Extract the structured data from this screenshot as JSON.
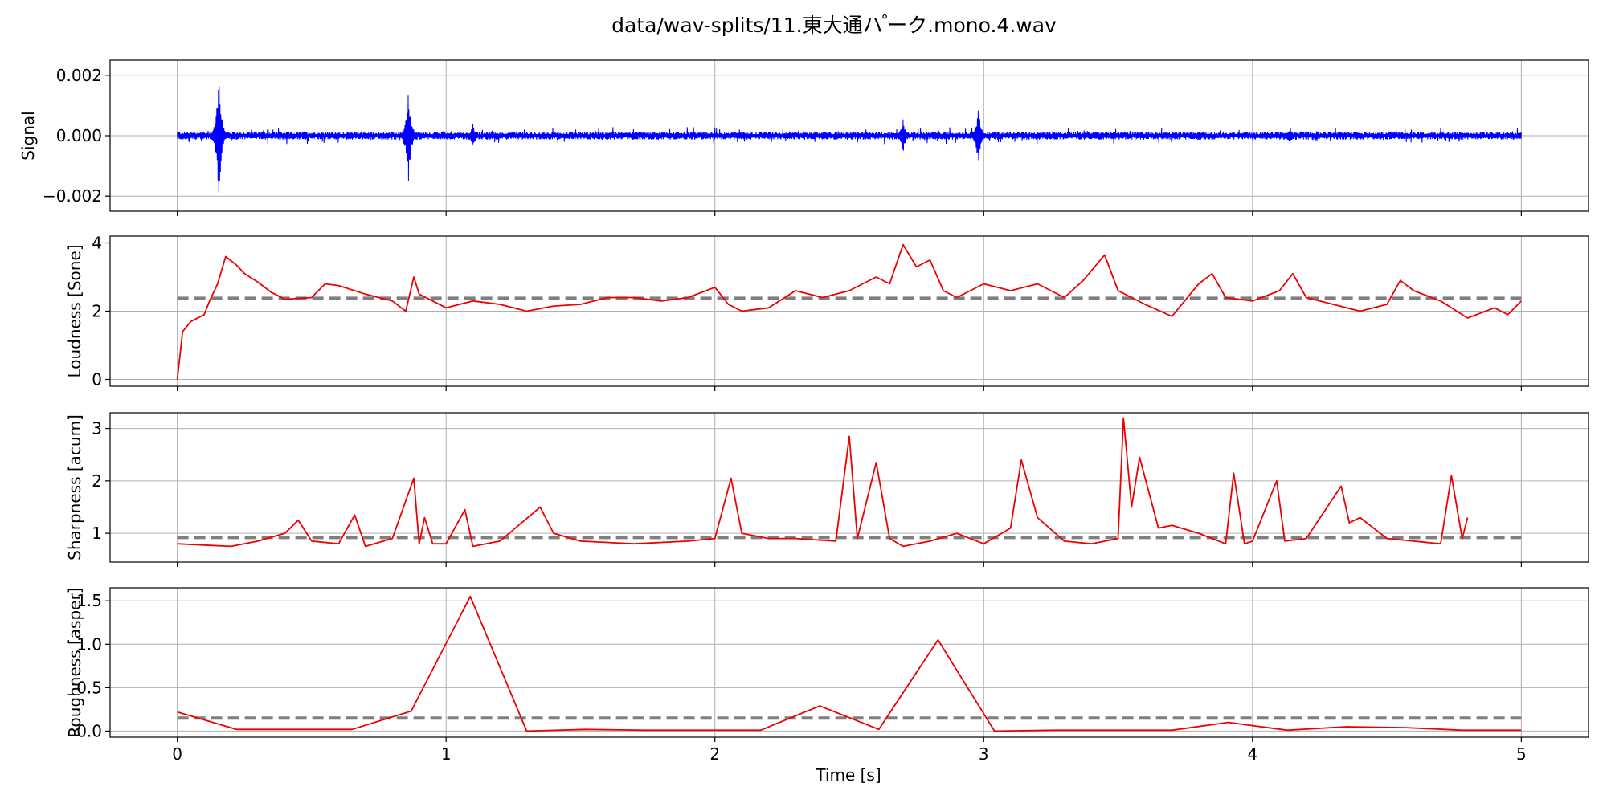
{
  "chart_data": {
    "type": "line",
    "title": "data/wav-splits/11.東大通ハ ゚ーク.mono.4.wav",
    "xlabel": "Time [s]",
    "xlim": [
      -0.25,
      5.25
    ],
    "xticks": [
      0,
      1,
      2,
      3,
      4,
      5
    ],
    "xtick_labels": [
      "0",
      "1",
      "2",
      "3",
      "4",
      "5"
    ],
    "grid": true,
    "panels": [
      {
        "key": "signal",
        "ylabel": "Signal",
        "ylim": [
          -0.0025,
          0.0025
        ],
        "yticks": [
          -0.002,
          0.0,
          0.002
        ],
        "ytick_labels": [
          "−0.002",
          "0.000",
          "0.002"
        ],
        "color": "#0000ff",
        "style": "noise",
        "baseline_amplitude": 0.00013,
        "spikes": [
          {
            "t": 0.155,
            "amp": 0.0022
          },
          {
            "t": 0.86,
            "amp": 0.0017
          },
          {
            "t": 1.1,
            "amp": 0.0004
          },
          {
            "t": 2.7,
            "amp": 0.0006
          },
          {
            "t": 2.98,
            "amp": 0.001
          },
          {
            "t": 4.14,
            "amp": 0.0003
          }
        ],
        "x_range": [
          0,
          5
        ]
      },
      {
        "key": "loudness",
        "ylabel": "Loudness [Sone]",
        "ylim": [
          -0.2,
          4.2
        ],
        "yticks": [
          0,
          2,
          4
        ],
        "ytick_labels": [
          "0",
          "2",
          "4"
        ],
        "color": "#ee0000",
        "style": "line",
        "mean": 2.38,
        "x": [
          0,
          0.02,
          0.05,
          0.1,
          0.12,
          0.15,
          0.18,
          0.22,
          0.25,
          0.3,
          0.35,
          0.4,
          0.5,
          0.55,
          0.6,
          0.7,
          0.8,
          0.85,
          0.88,
          0.9,
          0.95,
          1.0,
          1.1,
          1.2,
          1.3,
          1.4,
          1.5,
          1.6,
          1.7,
          1.8,
          1.9,
          2.0,
          2.05,
          2.1,
          2.2,
          2.3,
          2.4,
          2.5,
          2.6,
          2.65,
          2.7,
          2.75,
          2.8,
          2.85,
          2.9,
          3.0,
          3.1,
          3.2,
          3.3,
          3.37,
          3.45,
          3.5,
          3.6,
          3.7,
          3.8,
          3.85,
          3.9,
          4.0,
          4.1,
          4.15,
          4.2,
          4.3,
          4.4,
          4.5,
          4.55,
          4.6,
          4.7,
          4.8,
          4.9,
          4.95,
          5.0
        ],
        "values": [
          0.0,
          1.4,
          1.7,
          1.9,
          2.3,
          2.8,
          3.6,
          3.35,
          3.1,
          2.85,
          2.55,
          2.35,
          2.4,
          2.8,
          2.75,
          2.5,
          2.3,
          2.0,
          3.0,
          2.5,
          2.3,
          2.1,
          2.3,
          2.2,
          2.0,
          2.15,
          2.2,
          2.4,
          2.4,
          2.3,
          2.4,
          2.7,
          2.2,
          2.0,
          2.1,
          2.6,
          2.4,
          2.6,
          3.0,
          2.8,
          3.95,
          3.3,
          3.5,
          2.6,
          2.4,
          2.8,
          2.6,
          2.8,
          2.4,
          2.9,
          3.65,
          2.6,
          2.2,
          1.85,
          2.8,
          3.1,
          2.4,
          2.3,
          2.6,
          3.1,
          2.4,
          2.2,
          2.0,
          2.2,
          2.9,
          2.6,
          2.3,
          1.8,
          2.1,
          1.9,
          2.3
        ]
      },
      {
        "key": "sharpness",
        "ylabel": "Sharpness [acum]",
        "ylim": [
          0.45,
          3.3
        ],
        "yticks": [
          1,
          2,
          3
        ],
        "ytick_labels": [
          "1",
          "2",
          "3"
        ],
        "color": "#ee0000",
        "style": "line",
        "mean": 0.92,
        "x": [
          0,
          0.2,
          0.3,
          0.4,
          0.45,
          0.5,
          0.6,
          0.66,
          0.7,
          0.8,
          0.88,
          0.9,
          0.92,
          0.95,
          1.0,
          1.07,
          1.1,
          1.2,
          1.35,
          1.4,
          1.5,
          1.7,
          1.9,
          2.0,
          2.06,
          2.1,
          2.2,
          2.3,
          2.45,
          2.5,
          2.53,
          2.6,
          2.65,
          2.7,
          2.8,
          2.9,
          3.0,
          3.1,
          3.14,
          3.2,
          3.3,
          3.4,
          3.5,
          3.52,
          3.55,
          3.58,
          3.65,
          3.7,
          3.8,
          3.9,
          3.93,
          3.97,
          4.0,
          4.09,
          4.12,
          4.2,
          4.33,
          4.36,
          4.4,
          4.5,
          4.6,
          4.7,
          4.74,
          4.78,
          4.8
        ],
        "values": [
          0.8,
          0.75,
          0.85,
          1.0,
          1.25,
          0.85,
          0.8,
          1.35,
          0.75,
          0.9,
          2.05,
          0.8,
          1.3,
          0.8,
          0.8,
          1.45,
          0.75,
          0.85,
          1.5,
          1.0,
          0.85,
          0.8,
          0.85,
          0.9,
          2.05,
          1.0,
          0.9,
          0.9,
          0.85,
          2.85,
          0.9,
          2.35,
          0.9,
          0.75,
          0.85,
          1.0,
          0.8,
          1.1,
          2.4,
          1.3,
          0.85,
          0.8,
          0.9,
          3.2,
          1.5,
          2.45,
          1.1,
          1.15,
          1.0,
          0.8,
          2.15,
          0.8,
          0.85,
          2.0,
          0.85,
          0.9,
          1.9,
          1.2,
          1.3,
          0.9,
          0.85,
          0.8,
          2.1,
          0.9,
          1.3
        ]
      },
      {
        "key": "roughness",
        "ylabel": "Roughness [asper]",
        "ylim": [
          -0.07,
          1.65
        ],
        "yticks": [
          0.0,
          0.5,
          1.0,
          1.5
        ],
        "ytick_labels": [
          "0.0",
          "0.5",
          "1.0",
          "1.5"
        ],
        "color": "#ee0000",
        "style": "line",
        "mean": 0.15,
        "x": [
          0,
          0.22,
          0.65,
          0.87,
          1.09,
          1.3,
          1.52,
          1.74,
          1.96,
          2.17,
          2.39,
          2.61,
          2.83,
          3.04,
          3.26,
          3.48,
          3.7,
          3.91,
          4.13,
          4.35,
          4.57,
          4.78,
          5.0
        ],
        "values": [
          0.22,
          0.02,
          0.02,
          0.23,
          1.55,
          0.0,
          0.02,
          0.01,
          0.01,
          0.01,
          0.29,
          0.02,
          1.05,
          0.0,
          0.01,
          0.01,
          0.01,
          0.1,
          0.01,
          0.05,
          0.04,
          0.01,
          0.01
        ]
      }
    ]
  }
}
